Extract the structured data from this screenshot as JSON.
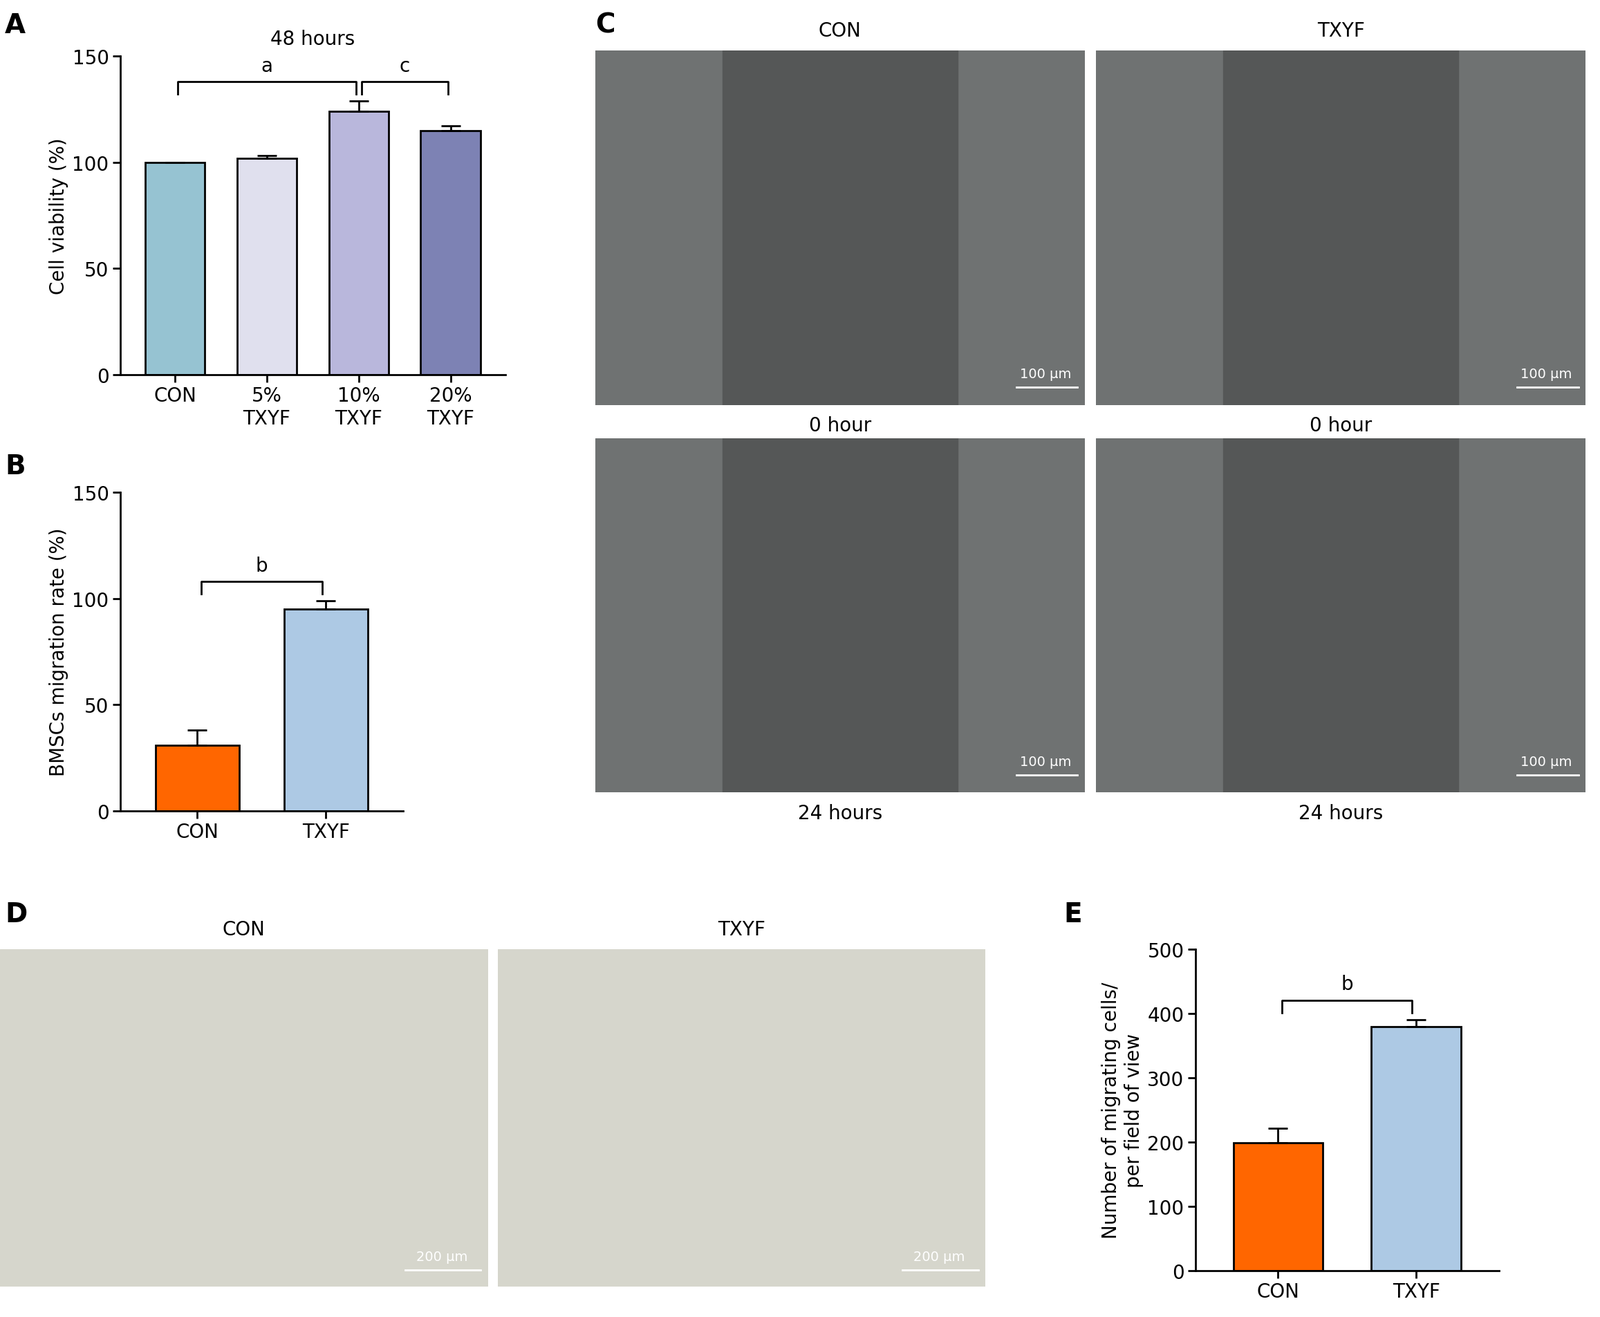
{
  "chart_data": [
    {
      "panel": "A",
      "type": "bar",
      "title": "48 hours",
      "y_label": "Cell viability (%)",
      "categories": [
        "CON",
        "5%\nTXYF",
        "10%\nTXYF",
        "20%\nTXYF"
      ],
      "values": [
        100,
        102,
        124,
        115
      ],
      "errors": [
        0,
        1,
        5,
        2
      ],
      "colors": [
        "#96c3d2",
        "#e0e0ee",
        "#b9b7dc",
        "#7d82b4"
      ],
      "ylim": [
        0,
        150
      ],
      "yticks": [
        0,
        50,
        100,
        150
      ],
      "annotations": [
        {
          "text": "a",
          "from": "CON",
          "to": "10%\nTXYF"
        },
        {
          "text": "c",
          "from": "10%\nTXYF",
          "to": "20%\nTXYF"
        }
      ]
    },
    {
      "panel": "B",
      "type": "bar",
      "y_label": "BMSCs migration rate (%)",
      "categories": [
        "CON",
        "TXYF"
      ],
      "values": [
        31,
        95
      ],
      "errors": [
        7,
        4
      ],
      "colors": [
        "#ff6600",
        "#adc9e4"
      ],
      "ylim": [
        0,
        150
      ],
      "yticks": [
        0,
        50,
        100,
        150
      ],
      "annotations": [
        {
          "text": "b",
          "from": "CON",
          "to": "TXYF"
        }
      ]
    },
    {
      "panel": "E",
      "type": "bar",
      "y_label": "Number of migrating cells/\nper field of view",
      "categories": [
        "CON",
        "TXYF"
      ],
      "values": [
        199,
        380
      ],
      "errors": [
        23,
        11
      ],
      "colors": [
        "#ff6600",
        "#adc9e4"
      ],
      "ylim": [
        0,
        500
      ],
      "yticks": [
        0,
        100,
        200,
        300,
        400,
        500
      ],
      "annotations": [
        {
          "text": "b",
          "from": "CON",
          "to": "TXYF"
        }
      ]
    }
  ],
  "image_panels": [
    {
      "panel": "C",
      "columns": [
        "CON",
        "TXYF"
      ],
      "rows": [
        "0 hour",
        "24 hours"
      ],
      "scale_bar": "100 μm"
    },
    {
      "panel": "D",
      "columns": [
        "CON",
        "TXYF"
      ],
      "scale_bar": "200 μm"
    }
  ]
}
